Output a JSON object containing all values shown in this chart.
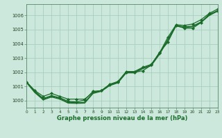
{
  "background_color": "#cce8dc",
  "grid_color": "#aacfbe",
  "line_color": "#1a6b2a",
  "title": "Graphe pression niveau de la mer (hPa)",
  "xlim": [
    0,
    23
  ],
  "ylim": [
    999.5,
    1006.8
  ],
  "yticks": [
    1000,
    1001,
    1002,
    1003,
    1004,
    1005,
    1006
  ],
  "xticks": [
    0,
    1,
    2,
    3,
    4,
    5,
    6,
    7,
    8,
    9,
    10,
    11,
    12,
    13,
    14,
    15,
    16,
    17,
    18,
    19,
    20,
    21,
    22,
    23
  ],
  "series1": {
    "x": [
      0,
      1,
      2,
      3,
      4,
      5,
      6,
      7,
      8,
      9,
      10,
      11,
      12,
      13,
      14,
      15,
      16,
      17,
      18,
      19,
      20,
      21,
      22,
      23
    ],
    "y": [
      1001.3,
      1000.7,
      1000.3,
      1000.5,
      1000.3,
      1000.1,
      1000.1,
      1000.1,
      1000.6,
      1000.7,
      1001.1,
      1001.3,
      1002.0,
      1002.0,
      1002.1,
      1002.5,
      1003.4,
      1004.1,
      1005.3,
      1005.1,
      1005.1,
      1005.5,
      1006.1,
      1006.3
    ]
  },
  "series2": {
    "x": [
      0,
      1,
      2,
      3,
      4,
      5,
      6,
      7,
      8,
      9,
      10,
      11,
      12,
      13,
      14,
      15,
      16,
      17,
      18,
      19,
      20,
      21,
      22,
      23
    ],
    "y": [
      1001.3,
      1000.65,
      1000.15,
      1000.35,
      1000.2,
      999.95,
      999.9,
      1000.05,
      1000.65,
      1000.7,
      1001.15,
      1001.35,
      1002.05,
      1002.05,
      1002.35,
      1002.55,
      1003.35,
      1004.45,
      1005.35,
      1005.3,
      1005.4,
      1005.7,
      1006.15,
      1006.45
    ]
  },
  "series3": {
    "x": [
      0,
      1,
      2,
      3,
      4,
      5,
      6,
      7,
      8,
      9,
      10,
      11,
      12,
      13,
      14,
      15,
      16,
      17,
      18,
      19,
      20,
      21,
      22,
      23
    ],
    "y": [
      1001.3,
      1000.6,
      1000.1,
      1000.3,
      1000.15,
      999.88,
      999.85,
      999.88,
      1000.55,
      1000.7,
      1001.1,
      1001.3,
      1002.0,
      1002.0,
      1002.3,
      1002.5,
      1003.3,
      1004.3,
      1005.3,
      1005.2,
      1005.25,
      1005.55,
      1006.05,
      1006.35
    ]
  },
  "series4": {
    "x": [
      0,
      1,
      2,
      3,
      4,
      5,
      6,
      7,
      8,
      9,
      10,
      11,
      12,
      13,
      14,
      15,
      16,
      17,
      18,
      19,
      20,
      21,
      22,
      23
    ],
    "y": [
      1001.25,
      1000.55,
      1000.05,
      1000.25,
      1000.1,
      999.82,
      999.8,
      999.82,
      1000.5,
      1000.65,
      1001.05,
      1001.25,
      1001.95,
      1001.95,
      1002.25,
      1002.45,
      1003.25,
      1004.25,
      1005.25,
      1005.15,
      1005.2,
      1005.5,
      1006.0,
      1006.3
    ]
  }
}
